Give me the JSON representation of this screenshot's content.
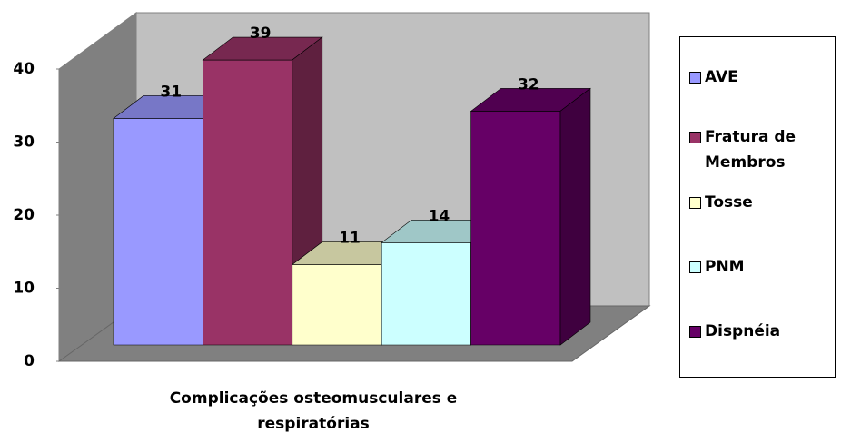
{
  "chart_data": {
    "type": "bar",
    "x_label": "Complicações osteomusculares e respiratórias",
    "ylim": [
      0,
      40
    ],
    "yticks": [
      0,
      10,
      20,
      30,
      40
    ],
    "grid": false,
    "legend": "right",
    "series": [
      {
        "name": "AVE",
        "color": "#9999ff",
        "values": [
          31
        ]
      },
      {
        "name": "Fratura de Membros",
        "color": "#993366",
        "values": [
          39
        ]
      },
      {
        "name": "Tosse",
        "color": "#ffffcc",
        "values": [
          11
        ]
      },
      {
        "name": "PNM",
        "color": "#ccffff",
        "values": [
          14
        ]
      },
      {
        "name": "Dispnéia",
        "color": "#660066",
        "values": [
          32
        ]
      }
    ]
  }
}
